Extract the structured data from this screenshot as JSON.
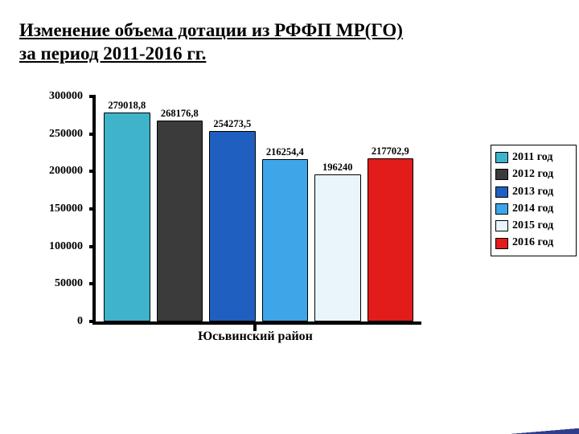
{
  "title_lines": [
    "Изменение объема дотации из РФФП МР(ГО)",
    "за период 2011-2016 гг."
  ],
  "chart": {
    "type": "bar",
    "x_category_label": "Юсьвинский район",
    "ylim": [
      0,
      300000
    ],
    "ytick_step": 50000,
    "yticks": [
      0,
      50000,
      100000,
      150000,
      200000,
      250000,
      300000
    ],
    "axis_color": "#000000",
    "background_color": "#ffffff",
    "bar_border_color": "#000000",
    "label_fontsize_pt": 12,
    "axis_fontsize_pt": 14,
    "bars": [
      {
        "year": "2011 год",
        "value": 279018.8,
        "label": "279018,8",
        "color": "#3fb3c9"
      },
      {
        "year": "2012 год",
        "value": 268176.8,
        "label": "268176,8",
        "color": "#3b3b3b"
      },
      {
        "year": "2013 год",
        "value": 254273.5,
        "label": "254273,5",
        "color": "#1f5fbf"
      },
      {
        "year": "2014 год",
        "value": 216254.4,
        "label": "216254,4",
        "color": "#3da5e8"
      },
      {
        "year": "2015 год",
        "value": 196240,
        "label": "196240",
        "color": "#e9f4fb"
      },
      {
        "year": "2016 год",
        "value": 217702.9,
        "label": "217702,9",
        "color": "#e21b1b"
      }
    ],
    "legend": [
      {
        "text": "2011 год",
        "color": "#3fb3c9"
      },
      {
        "text": "2012 год",
        "color": "#3b3b3b"
      },
      {
        "text": "2013 год",
        "color": "#1f5fbf"
      },
      {
        "text": "2014 год",
        "color": "#3da5e8"
      },
      {
        "text": "2015 год",
        "color": "#e9f4fb"
      },
      {
        "text": "2016 год",
        "color": "#e21b1b"
      }
    ]
  }
}
